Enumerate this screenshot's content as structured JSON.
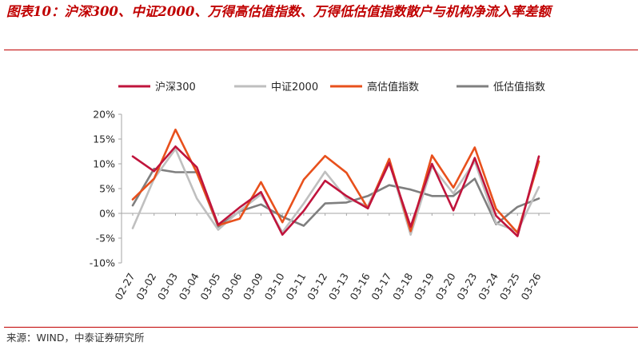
{
  "page": {
    "title": "图表10：沪深300、中证2000、万得高估值指数、万得低估值指数散户与机构净流入率差额",
    "source": "来源：WIND，中泰证券研究所"
  },
  "colors": {
    "accent": "#c00000",
    "series": [
      "#c0143c",
      "#bfbfbf",
      "#e8501c",
      "#7f7f7f"
    ]
  },
  "chart_data": {
    "type": "line",
    "title": "",
    "xlabel": "",
    "ylabel": "",
    "ylim": [
      -10,
      20
    ],
    "yticks": [
      -10,
      -5,
      0,
      5,
      10,
      15,
      20
    ],
    "ytick_labels": [
      "-10%",
      "-5%",
      "0%",
      "5%",
      "10%",
      "15%",
      "20%"
    ],
    "legend_position": "top",
    "grid": false,
    "categories": [
      "02-27",
      "03-02",
      "03-03",
      "03-04",
      "03-05",
      "03-06",
      "03-09",
      "03-10",
      "03-11",
      "03-12",
      "03-13",
      "03-16",
      "03-17",
      "03-18",
      "03-19",
      "03-20",
      "03-23",
      "03-24",
      "03-25",
      "03-26"
    ],
    "series": [
      {
        "name": "沪深300",
        "values": [
          11.5,
          8.5,
          13.5,
          9.3,
          -2.3,
          1.2,
          4.3,
          -4.3,
          0.5,
          6.6,
          3.5,
          1.0,
          10.2,
          -2.7,
          10.0,
          0.6,
          11.2,
          -0.5,
          -4.6,
          11.5
        ]
      },
      {
        "name": "中证2000",
        "values": [
          -3.0,
          7.0,
          13.0,
          3.0,
          -3.3,
          0.5,
          3.8,
          -3.8,
          2.0,
          8.4,
          3.0,
          1.5,
          10.5,
          -4.3,
          9.5,
          4.0,
          10.5,
          -2.0,
          -3.6,
          5.3
        ]
      },
      {
        "name": "高估值指数",
        "values": [
          2.8,
          7.0,
          16.9,
          8.2,
          -2.4,
          -1.1,
          6.3,
          -1.8,
          6.8,
          11.6,
          8.2,
          1.0,
          11.0,
          -3.6,
          11.7,
          5.2,
          13.3,
          0.9,
          -3.9,
          10.5
        ]
      },
      {
        "name": "低估值指数",
        "values": [
          1.6,
          9.0,
          8.3,
          8.3,
          -2.7,
          0.4,
          1.8,
          -0.7,
          -2.5,
          2.0,
          2.2,
          3.5,
          5.7,
          4.8,
          3.5,
          3.5,
          7.0,
          -2.2,
          1.3,
          3.0
        ]
      }
    ]
  }
}
